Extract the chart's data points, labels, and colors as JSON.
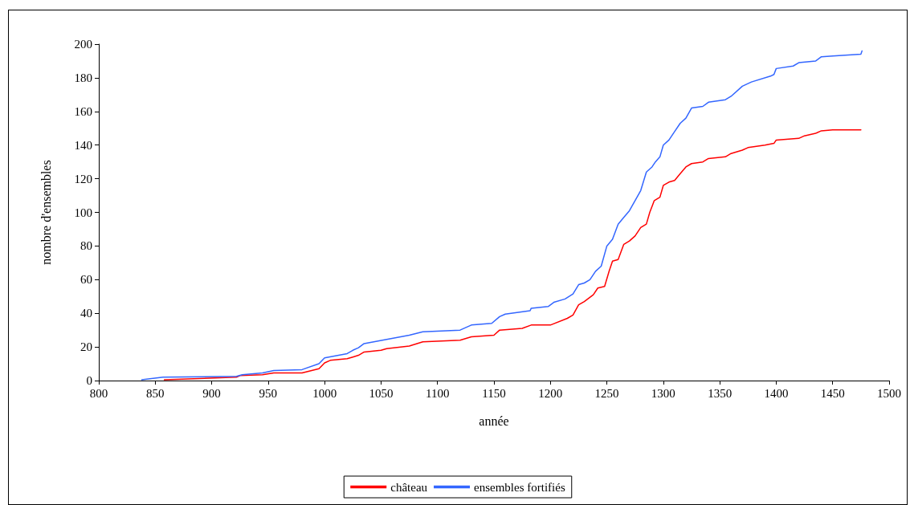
{
  "chart_data": {
    "type": "line",
    "xlabel": "année",
    "ylabel": "nombre d'ensembles",
    "xlim": [
      800,
      1500
    ],
    "xticks": [
      800,
      850,
      900,
      950,
      1000,
      1050,
      1100,
      1150,
      1200,
      1250,
      1300,
      1350,
      1400,
      1450,
      1500
    ],
    "ylim": [
      0,
      200
    ],
    "yticks": [
      0,
      20,
      40,
      60,
      80,
      100,
      120,
      140,
      160,
      180,
      200
    ],
    "grid": false,
    "legend": "bottom",
    "marker": "none",
    "line_style": "solid",
    "series": [
      {
        "name": "château",
        "color": "#ff0000",
        "x": [
          858,
          922,
          925,
          945,
          955,
          980,
          995,
          1000,
          1005,
          1020,
          1025,
          1030,
          1035,
          1050,
          1055,
          1075,
          1087,
          1120,
          1130,
          1150,
          1155,
          1175,
          1183,
          1200,
          1215,
          1220,
          1225,
          1230,
          1238,
          1242,
          1248,
          1252,
          1255,
          1260,
          1265,
          1270,
          1275,
          1280,
          1285,
          1288,
          1292,
          1297,
          1300,
          1305,
          1310,
          1315,
          1320,
          1325,
          1335,
          1340,
          1355,
          1360,
          1370,
          1375,
          1390,
          1398,
          1400,
          1420,
          1425,
          1435,
          1440,
          1450,
          1475
        ],
        "values": [
          0.5,
          2,
          3,
          3.5,
          4.5,
          4.5,
          7,
          10.5,
          12,
          13,
          14,
          15,
          17,
          18,
          19,
          20.5,
          23,
          24,
          26,
          27,
          30,
          31,
          33,
          33,
          37,
          39,
          45,
          47,
          51,
          55,
          56,
          65,
          71,
          72,
          81,
          83,
          86,
          91,
          93,
          100,
          107,
          109,
          116,
          118,
          119,
          123,
          127,
          129,
          130,
          132,
          133,
          135,
          137,
          138.5,
          140,
          141,
          143,
          144,
          145.5,
          147,
          148.5,
          149,
          149
        ]
      },
      {
        "name": "ensembles fortifiés",
        "color": "#3366ff",
        "x": [
          838,
          857,
          922,
          927,
          945,
          955,
          980,
          995,
          1000,
          1020,
          1025,
          1030,
          1035,
          1055,
          1075,
          1087,
          1120,
          1130,
          1148,
          1155,
          1160,
          1182,
          1183,
          1198,
          1203,
          1213,
          1220,
          1225,
          1230,
          1235,
          1240,
          1245,
          1250,
          1255,
          1260,
          1265,
          1270,
          1275,
          1280,
          1285,
          1290,
          1293,
          1297,
          1300,
          1305,
          1310,
          1315,
          1320,
          1325,
          1335,
          1340,
          1355,
          1360,
          1370,
          1378,
          1395,
          1398,
          1400,
          1415,
          1420,
          1435,
          1440,
          1450,
          1475,
          1476
        ],
        "values": [
          0.5,
          2,
          2.5,
          3.5,
          4.5,
          6,
          6.5,
          10,
          13.5,
          16,
          18,
          19.5,
          22,
          24.5,
          27,
          29,
          30,
          33,
          34,
          38,
          39.5,
          41.5,
          43,
          44,
          46.5,
          48.5,
          51.5,
          57,
          58,
          60,
          65,
          68,
          80,
          84,
          93,
          97,
          101,
          107,
          113,
          124,
          127,
          130,
          133,
          140,
          143,
          148,
          153,
          156,
          162,
          163,
          165.5,
          167,
          169,
          175,
          177.5,
          181,
          182,
          185.5,
          187,
          189,
          190,
          192.5,
          193,
          194,
          196
        ]
      }
    ]
  }
}
